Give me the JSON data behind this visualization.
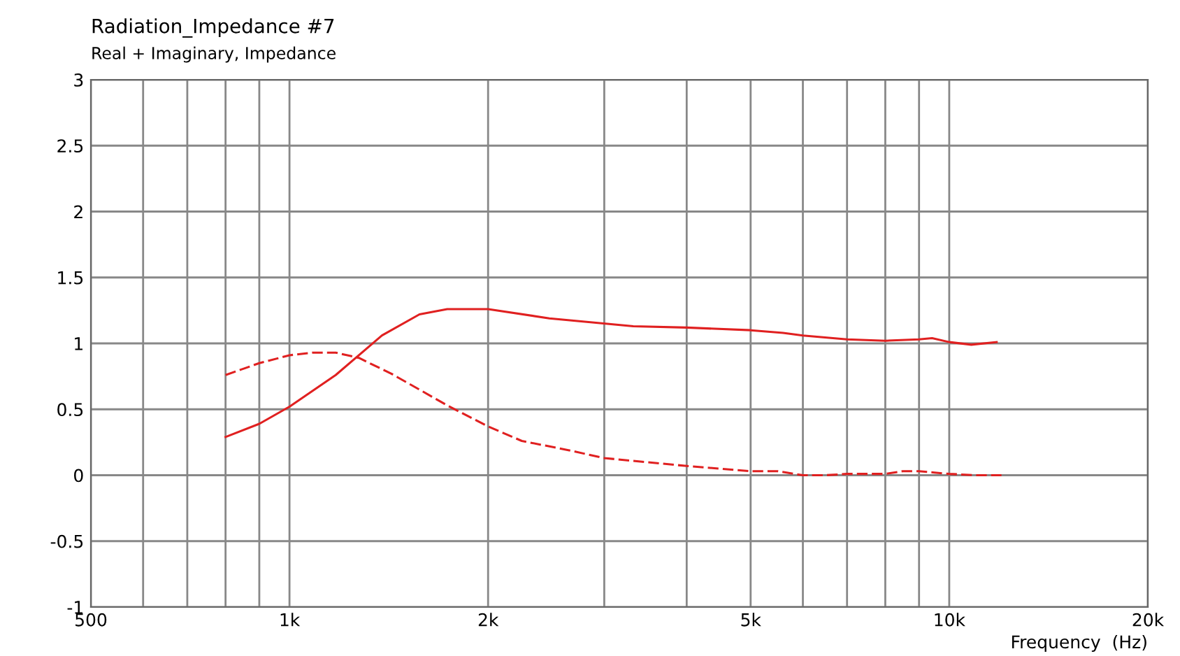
{
  "chart_data": {
    "type": "line",
    "title": "Radiation_Impedance #7",
    "subtitle": "Real + Imaginary, Impedance",
    "xlabel": "Frequency  (Hz)",
    "log": "x",
    "grid": true,
    "legend": false,
    "xlim": [
      500,
      20000
    ],
    "xticks": [
      500,
      {
        "value": 600,
        "label": null
      },
      {
        "value": 700,
        "label": null
      },
      {
        "value": 800,
        "label": null
      },
      {
        "value": 900,
        "label": null
      },
      {
        "value": 1000,
        "label": "1k"
      },
      {
        "value": 2000,
        "label": "2k"
      },
      {
        "value": 3000,
        "label": null
      },
      {
        "value": 4000,
        "label": null
      },
      {
        "value": 5000,
        "label": "5k"
      },
      {
        "value": 6000,
        "label": null
      },
      {
        "value": 7000,
        "label": null
      },
      {
        "value": 8000,
        "label": null
      },
      {
        "value": 9000,
        "label": null
      },
      {
        "value": 10000,
        "label": "10k"
      },
      {
        "value": 20000,
        "label": "20k"
      }
    ],
    "ylim": [
      -1,
      3
    ],
    "yticks": [
      -1,
      -0.5,
      0,
      0.5,
      1,
      1.5,
      2,
      2.5,
      3
    ],
    "series": [
      {
        "color": "#e02020",
        "line_style": "solid",
        "x": [
          800,
          900,
          1000,
          1175,
          1381,
          1574,
          1734,
          2000,
          2477,
          3012,
          3320,
          4000,
          5000,
          5600,
          6000,
          7000,
          8000,
          9000,
          9420,
          10000,
          10800,
          11800
        ],
        "values": [
          0.29,
          0.39,
          0.52,
          0.76,
          1.06,
          1.22,
          1.26,
          1.26,
          1.19,
          1.15,
          1.13,
          1.12,
          1.1,
          1.08,
          1.06,
          1.03,
          1.02,
          1.03,
          1.04,
          1.01,
          0.99,
          1.01
        ]
      },
      {
        "color": "#e02020",
        "line_style": "dashed",
        "x": [
          800,
          900,
          1000,
          1083,
          1175,
          1274,
          1427,
          1734,
          2000,
          2250,
          2647,
          3000,
          4000,
          5000,
          5500,
          6000,
          6500,
          7000,
          8000,
          8500,
          9000,
          9500,
          10000,
          11000,
          12000
        ],
        "values": [
          0.76,
          0.85,
          0.91,
          0.93,
          0.93,
          0.89,
          0.77,
          0.53,
          0.37,
          0.26,
          0.19,
          0.13,
          0.07,
          0.03,
          0.03,
          0.0,
          0.0,
          0.01,
          0.01,
          0.03,
          0.03,
          0.02,
          0.01,
          0.0,
          0.0
        ]
      }
    ]
  }
}
